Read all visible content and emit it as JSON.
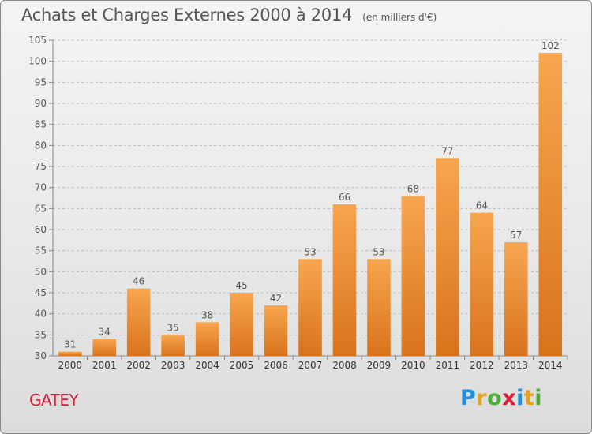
{
  "title": "Achats et Charges Externes 2000 à 2014",
  "unit": "(en milliers d'€)",
  "commune": "GATEY",
  "logo": {
    "letters": [
      "P",
      "r",
      "o",
      "x",
      "i",
      "t",
      "i"
    ],
    "colors": [
      "#1e8fd8",
      "#e6a21a",
      "#4cae36",
      "#d8203a",
      "#1e8fd8",
      "#e6a21a",
      "#4cae36"
    ]
  },
  "colors": {
    "bar_light": "#f7a64f",
    "bar_dark": "#d9731c",
    "grid": "#bdbdbd",
    "text": "#555555"
  },
  "chart_data": {
    "type": "bar",
    "title": "Achats et Charges Externes 2000 à 2014",
    "subtitle": "(en milliers d'€)",
    "xlabel": "",
    "ylabel": "",
    "categories": [
      "2000",
      "2001",
      "2002",
      "2003",
      "2004",
      "2005",
      "2006",
      "2007",
      "2008",
      "2009",
      "2010",
      "2011",
      "2012",
      "2013",
      "2014"
    ],
    "values": [
      31,
      34,
      46,
      35,
      38,
      45,
      42,
      53,
      66,
      53,
      68,
      77,
      64,
      57,
      102
    ],
    "ylim": [
      30,
      105
    ],
    "yticks": [
      30,
      35,
      40,
      45,
      50,
      55,
      60,
      65,
      70,
      75,
      80,
      85,
      90,
      95,
      100,
      105
    ],
    "grid": true,
    "data_labels": true
  }
}
